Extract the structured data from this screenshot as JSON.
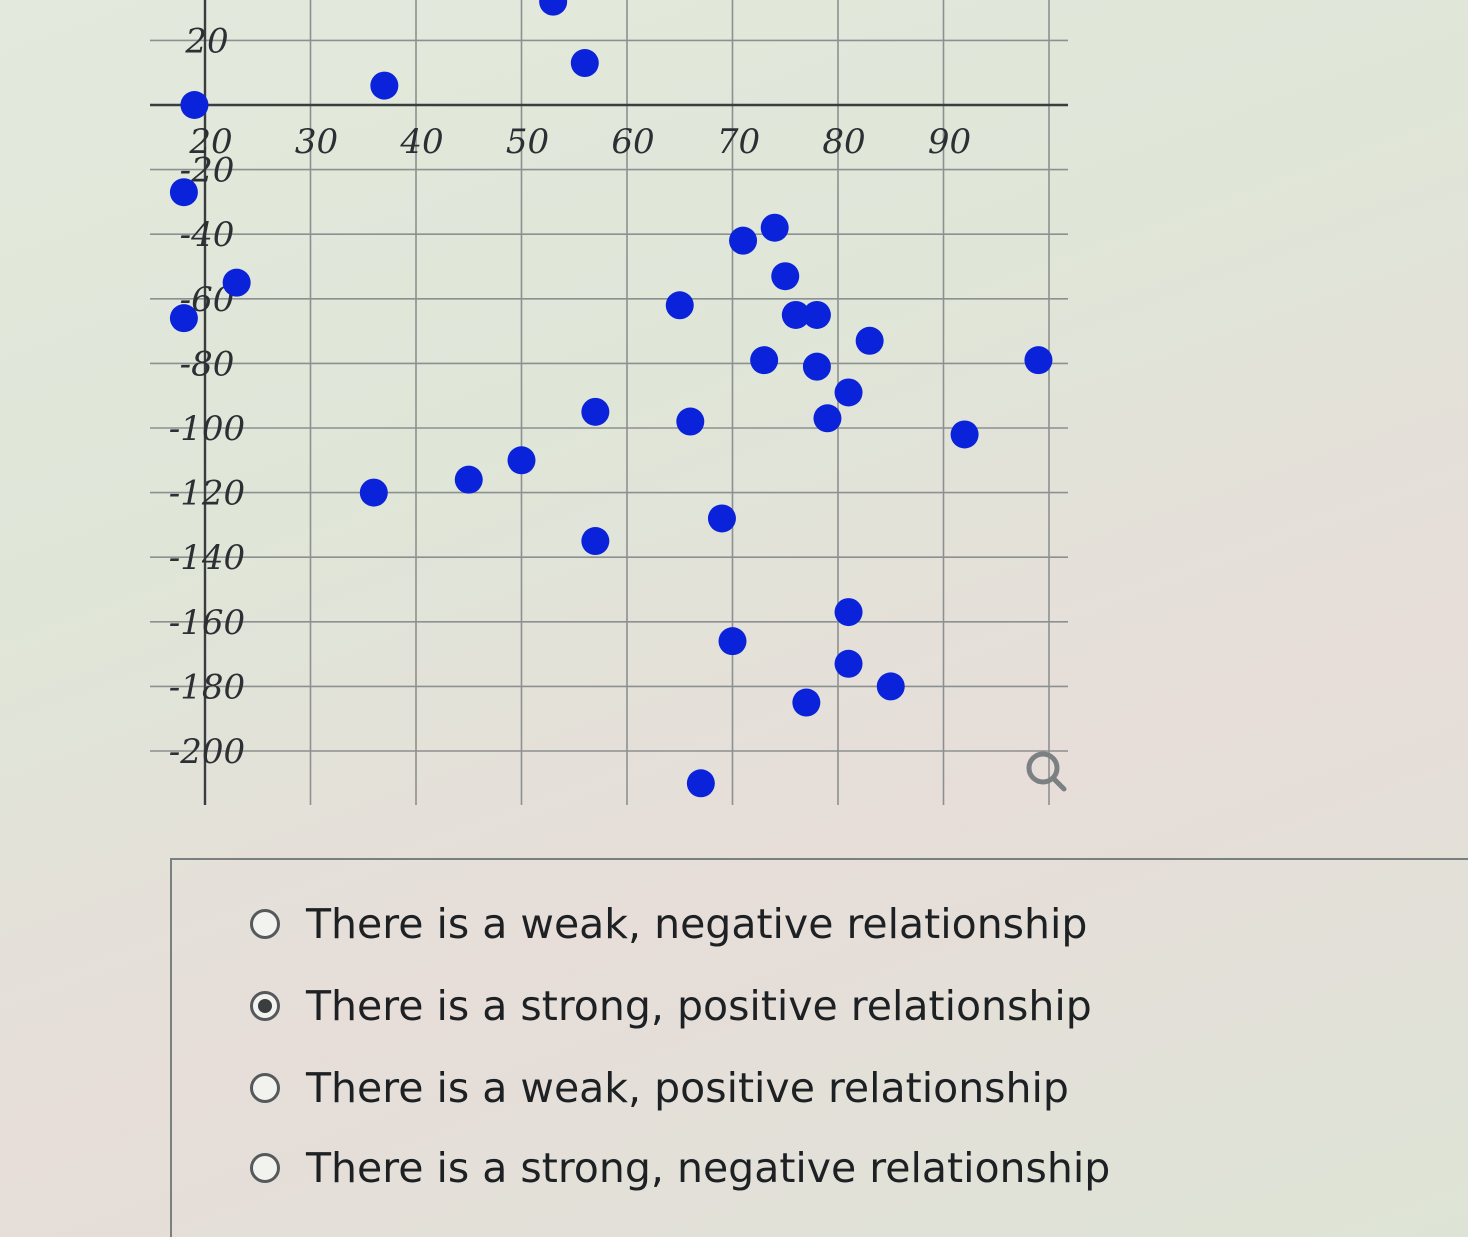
{
  "chart_data": {
    "type": "scatter",
    "title": "",
    "xlabel": "",
    "ylabel": "",
    "x_ticks": [
      "20",
      "30",
      "40",
      "50",
      "60",
      "70",
      "80",
      "90"
    ],
    "y_ticks": [
      "20",
      "-20",
      "-40",
      "-60",
      "-80",
      "-100",
      "-120",
      "-140",
      "-160",
      "-180",
      "-200"
    ],
    "xlim": [
      17,
      101
    ],
    "ylim": [
      -210,
      22
    ],
    "grid": true,
    "legend": "none",
    "colors": {
      "point": "#0a22d9"
    },
    "points": [
      {
        "x": 53,
        "y": 32
      },
      {
        "x": 56,
        "y": 13
      },
      {
        "x": 37,
        "y": 6
      },
      {
        "x": 19,
        "y": 0
      },
      {
        "x": 18,
        "y": -27
      },
      {
        "x": 23,
        "y": -55
      },
      {
        "x": 18,
        "y": -66
      },
      {
        "x": 71,
        "y": -42
      },
      {
        "x": 74,
        "y": -38
      },
      {
        "x": 75,
        "y": -53
      },
      {
        "x": 65,
        "y": -62
      },
      {
        "x": 76,
        "y": -65
      },
      {
        "x": 78,
        "y": -65
      },
      {
        "x": 83,
        "y": -73
      },
      {
        "x": 99,
        "y": -79
      },
      {
        "x": 73,
        "y": -79
      },
      {
        "x": 78,
        "y": -81
      },
      {
        "x": 81,
        "y": -89
      },
      {
        "x": 79,
        "y": -97
      },
      {
        "x": 57,
        "y": -95
      },
      {
        "x": 66,
        "y": -98
      },
      {
        "x": 92,
        "y": -102
      },
      {
        "x": 50,
        "y": -110
      },
      {
        "x": 45,
        "y": -116
      },
      {
        "x": 36,
        "y": -120
      },
      {
        "x": 69,
        "y": -128
      },
      {
        "x": 57,
        "y": -135
      },
      {
        "x": 81,
        "y": -157
      },
      {
        "x": 70,
        "y": -166
      },
      {
        "x": 81,
        "y": -173
      },
      {
        "x": 85,
        "y": -180
      },
      {
        "x": 77,
        "y": -185
      },
      {
        "x": 67,
        "y": -210
      }
    ]
  },
  "icons": {
    "zoom": "magnifier-icon"
  },
  "question": {
    "selected_index": 1,
    "options": [
      {
        "label": "There is a weak, negative relationship",
        "checked": false
      },
      {
        "label": "There is a strong, positive relationship",
        "checked": true
      },
      {
        "label": "There is a weak, positive relationship",
        "checked": false
      },
      {
        "label": "There is a strong, negative relationship",
        "checked": false
      }
    ]
  }
}
